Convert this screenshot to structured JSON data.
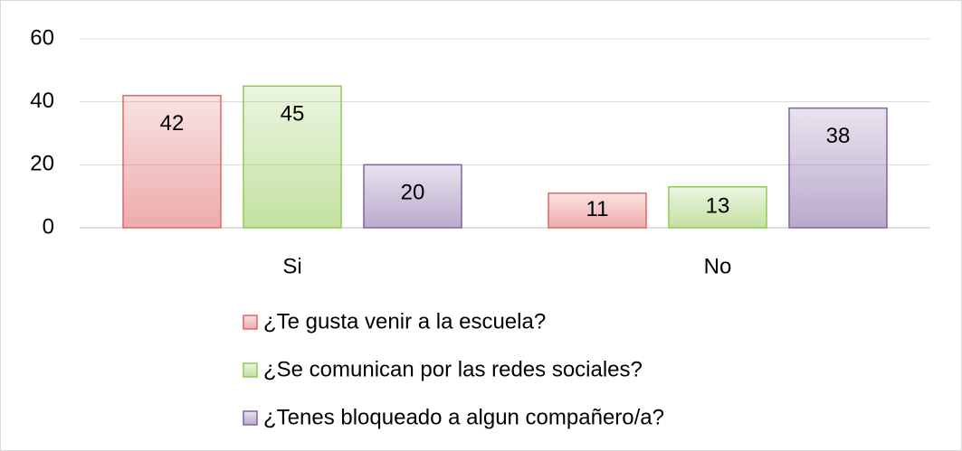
{
  "chart_data": {
    "type": "bar",
    "categories": [
      "Si",
      "No"
    ],
    "series": [
      {
        "name": "¿Te gusta venir a la escuela?",
        "color": "#e06666",
        "values": [
          42,
          11
        ]
      },
      {
        "name": "¿Se comunican por las redes sociales?",
        "color": "#92c955",
        "values": [
          45,
          13
        ]
      },
      {
        "name": "¿Tenes bloqueado a algun compañero/a?",
        "color": "#8064a2",
        "values": [
          20,
          38
        ]
      }
    ],
    "ylim": [
      0,
      60
    ],
    "yticks": [
      0,
      20,
      40,
      60
    ],
    "grid": true,
    "legend": "bottom"
  }
}
